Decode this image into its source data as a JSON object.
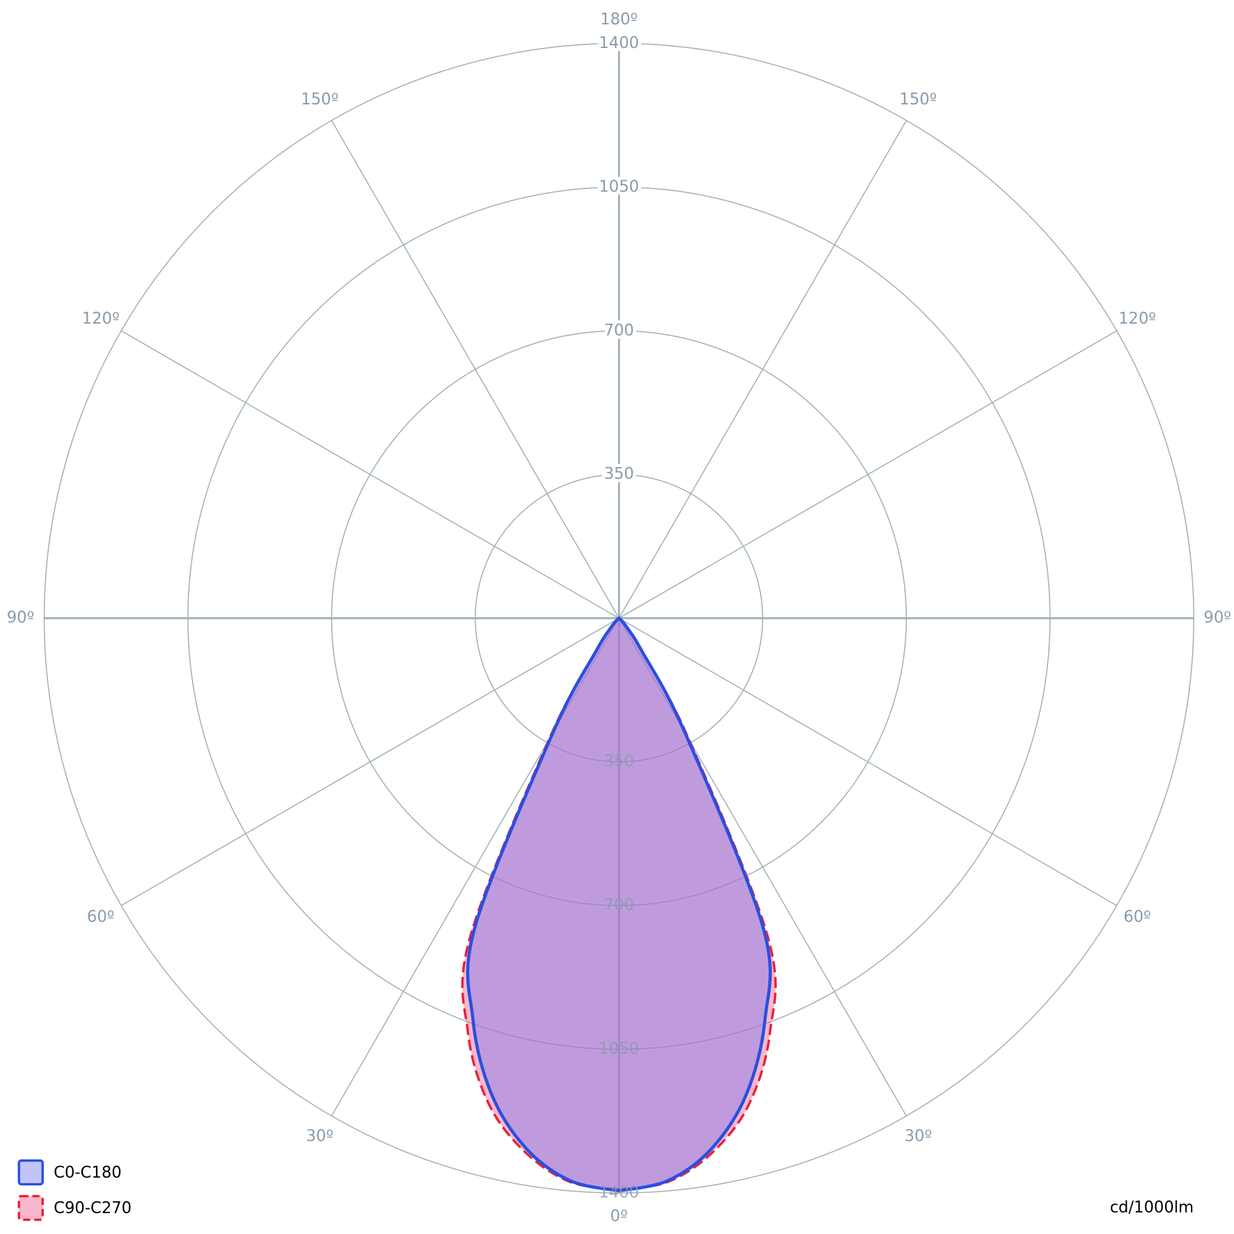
{
  "chart_data": {
    "type": "polar",
    "unit_label": "cd/1000lm",
    "x": [
      0,
      5,
      10,
      15,
      20,
      25,
      30,
      35,
      40,
      45,
      50,
      55,
      60,
      65,
      70,
      75,
      80,
      85,
      90
    ],
    "series": [
      {
        "name": "C90-C270",
        "color": "#e8213a",
        "fill": "#f0608f",
        "dashed": true,
        "values": [
          1392,
          1378,
          1320,
          1225,
          1075,
          860,
          340,
          100,
          38,
          14,
          5,
          0,
          0,
          0,
          0,
          0,
          0,
          0,
          0
        ]
      },
      {
        "name": "C0-C180",
        "color": "#2a4fe0",
        "fill": "#7b7bf5",
        "dashed": false,
        "values": [
          1395,
          1375,
          1310,
          1200,
          1040,
          830,
          320,
          95,
          35,
          12,
          4,
          0,
          0,
          0,
          0,
          0,
          0,
          0,
          0
        ]
      }
    ],
    "rlim": [
      0,
      1400
    ],
    "rticks": [
      350,
      700,
      1050,
      1400
    ],
    "angle_ticks": [
      {
        "value": 0,
        "label": "0º"
      },
      {
        "value": 30,
        "label": "30º"
      },
      {
        "value": 60,
        "label": "60º"
      },
      {
        "value": 90,
        "label": "90º"
      },
      {
        "value": 120,
        "label": "120º"
      },
      {
        "value": 150,
        "label": "150º"
      },
      {
        "value": 180,
        "label": "180º"
      }
    ],
    "grid": true
  }
}
